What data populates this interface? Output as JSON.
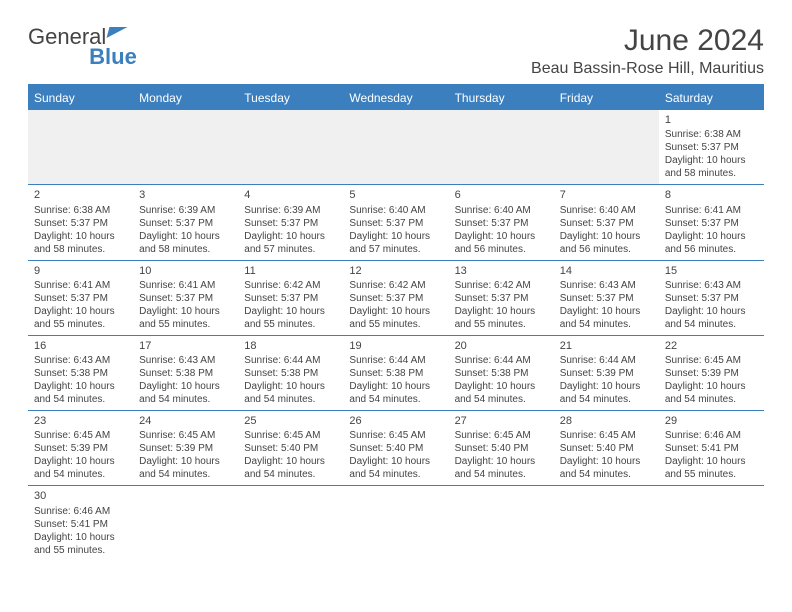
{
  "logo": {
    "part1": "General",
    "part2": "Blue"
  },
  "title": "June 2024",
  "location": "Beau Bassin-Rose Hill, Mauritius",
  "colors": {
    "accent": "#3b7fbf",
    "text": "#444444",
    "bg": "#ffffff",
    "blank": "#f0f0f0"
  },
  "days_header": [
    "Sunday",
    "Monday",
    "Tuesday",
    "Wednesday",
    "Thursday",
    "Friday",
    "Saturday"
  ],
  "weeks": [
    [
      null,
      null,
      null,
      null,
      null,
      null,
      {
        "n": "1",
        "sr": "Sunrise: 6:38 AM",
        "ss": "Sunset: 5:37 PM",
        "dl1": "Daylight: 10 hours",
        "dl2": "and 58 minutes."
      }
    ],
    [
      {
        "n": "2",
        "sr": "Sunrise: 6:38 AM",
        "ss": "Sunset: 5:37 PM",
        "dl1": "Daylight: 10 hours",
        "dl2": "and 58 minutes."
      },
      {
        "n": "3",
        "sr": "Sunrise: 6:39 AM",
        "ss": "Sunset: 5:37 PM",
        "dl1": "Daylight: 10 hours",
        "dl2": "and 58 minutes."
      },
      {
        "n": "4",
        "sr": "Sunrise: 6:39 AM",
        "ss": "Sunset: 5:37 PM",
        "dl1": "Daylight: 10 hours",
        "dl2": "and 57 minutes."
      },
      {
        "n": "5",
        "sr": "Sunrise: 6:40 AM",
        "ss": "Sunset: 5:37 PM",
        "dl1": "Daylight: 10 hours",
        "dl2": "and 57 minutes."
      },
      {
        "n": "6",
        "sr": "Sunrise: 6:40 AM",
        "ss": "Sunset: 5:37 PM",
        "dl1": "Daylight: 10 hours",
        "dl2": "and 56 minutes."
      },
      {
        "n": "7",
        "sr": "Sunrise: 6:40 AM",
        "ss": "Sunset: 5:37 PM",
        "dl1": "Daylight: 10 hours",
        "dl2": "and 56 minutes."
      },
      {
        "n": "8",
        "sr": "Sunrise: 6:41 AM",
        "ss": "Sunset: 5:37 PM",
        "dl1": "Daylight: 10 hours",
        "dl2": "and 56 minutes."
      }
    ],
    [
      {
        "n": "9",
        "sr": "Sunrise: 6:41 AM",
        "ss": "Sunset: 5:37 PM",
        "dl1": "Daylight: 10 hours",
        "dl2": "and 55 minutes."
      },
      {
        "n": "10",
        "sr": "Sunrise: 6:41 AM",
        "ss": "Sunset: 5:37 PM",
        "dl1": "Daylight: 10 hours",
        "dl2": "and 55 minutes."
      },
      {
        "n": "11",
        "sr": "Sunrise: 6:42 AM",
        "ss": "Sunset: 5:37 PM",
        "dl1": "Daylight: 10 hours",
        "dl2": "and 55 minutes."
      },
      {
        "n": "12",
        "sr": "Sunrise: 6:42 AM",
        "ss": "Sunset: 5:37 PM",
        "dl1": "Daylight: 10 hours",
        "dl2": "and 55 minutes."
      },
      {
        "n": "13",
        "sr": "Sunrise: 6:42 AM",
        "ss": "Sunset: 5:37 PM",
        "dl1": "Daylight: 10 hours",
        "dl2": "and 55 minutes."
      },
      {
        "n": "14",
        "sr": "Sunrise: 6:43 AM",
        "ss": "Sunset: 5:37 PM",
        "dl1": "Daylight: 10 hours",
        "dl2": "and 54 minutes."
      },
      {
        "n": "15",
        "sr": "Sunrise: 6:43 AM",
        "ss": "Sunset: 5:37 PM",
        "dl1": "Daylight: 10 hours",
        "dl2": "and 54 minutes."
      }
    ],
    [
      {
        "n": "16",
        "sr": "Sunrise: 6:43 AM",
        "ss": "Sunset: 5:38 PM",
        "dl1": "Daylight: 10 hours",
        "dl2": "and 54 minutes."
      },
      {
        "n": "17",
        "sr": "Sunrise: 6:43 AM",
        "ss": "Sunset: 5:38 PM",
        "dl1": "Daylight: 10 hours",
        "dl2": "and 54 minutes."
      },
      {
        "n": "18",
        "sr": "Sunrise: 6:44 AM",
        "ss": "Sunset: 5:38 PM",
        "dl1": "Daylight: 10 hours",
        "dl2": "and 54 minutes."
      },
      {
        "n": "19",
        "sr": "Sunrise: 6:44 AM",
        "ss": "Sunset: 5:38 PM",
        "dl1": "Daylight: 10 hours",
        "dl2": "and 54 minutes."
      },
      {
        "n": "20",
        "sr": "Sunrise: 6:44 AM",
        "ss": "Sunset: 5:38 PM",
        "dl1": "Daylight: 10 hours",
        "dl2": "and 54 minutes."
      },
      {
        "n": "21",
        "sr": "Sunrise: 6:44 AM",
        "ss": "Sunset: 5:39 PM",
        "dl1": "Daylight: 10 hours",
        "dl2": "and 54 minutes."
      },
      {
        "n": "22",
        "sr": "Sunrise: 6:45 AM",
        "ss": "Sunset: 5:39 PM",
        "dl1": "Daylight: 10 hours",
        "dl2": "and 54 minutes."
      }
    ],
    [
      {
        "n": "23",
        "sr": "Sunrise: 6:45 AM",
        "ss": "Sunset: 5:39 PM",
        "dl1": "Daylight: 10 hours",
        "dl2": "and 54 minutes."
      },
      {
        "n": "24",
        "sr": "Sunrise: 6:45 AM",
        "ss": "Sunset: 5:39 PM",
        "dl1": "Daylight: 10 hours",
        "dl2": "and 54 minutes."
      },
      {
        "n": "25",
        "sr": "Sunrise: 6:45 AM",
        "ss": "Sunset: 5:40 PM",
        "dl1": "Daylight: 10 hours",
        "dl2": "and 54 minutes."
      },
      {
        "n": "26",
        "sr": "Sunrise: 6:45 AM",
        "ss": "Sunset: 5:40 PM",
        "dl1": "Daylight: 10 hours",
        "dl2": "and 54 minutes."
      },
      {
        "n": "27",
        "sr": "Sunrise: 6:45 AM",
        "ss": "Sunset: 5:40 PM",
        "dl1": "Daylight: 10 hours",
        "dl2": "and 54 minutes."
      },
      {
        "n": "28",
        "sr": "Sunrise: 6:45 AM",
        "ss": "Sunset: 5:40 PM",
        "dl1": "Daylight: 10 hours",
        "dl2": "and 54 minutes."
      },
      {
        "n": "29",
        "sr": "Sunrise: 6:46 AM",
        "ss": "Sunset: 5:41 PM",
        "dl1": "Daylight: 10 hours",
        "dl2": "and 55 minutes."
      }
    ],
    [
      {
        "n": "30",
        "sr": "Sunrise: 6:46 AM",
        "ss": "Sunset: 5:41 PM",
        "dl1": "Daylight: 10 hours",
        "dl2": "and 55 minutes."
      },
      null,
      null,
      null,
      null,
      null,
      null
    ]
  ]
}
